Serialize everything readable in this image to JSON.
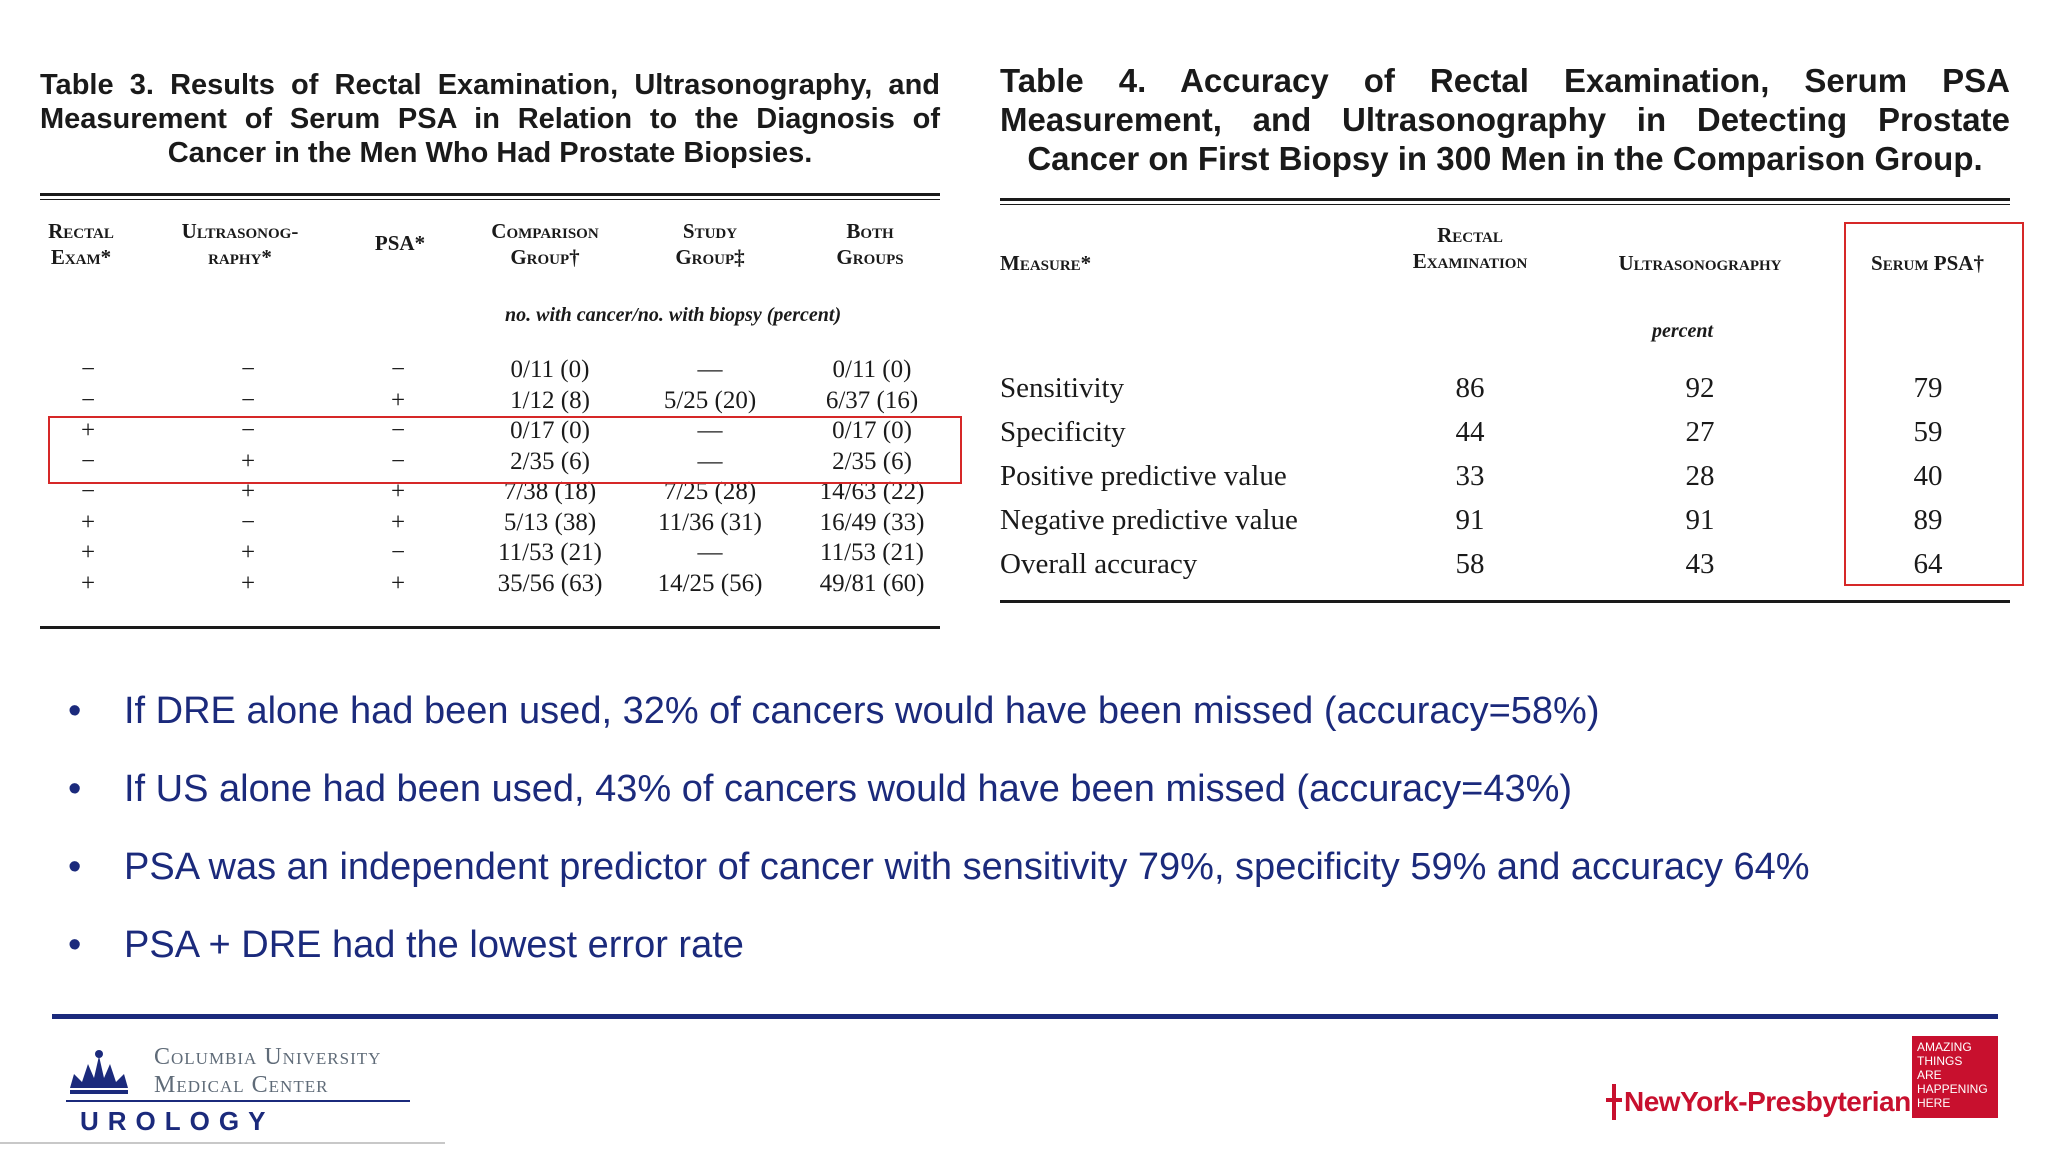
{
  "table3": {
    "caption": "Table 3. Results of Rectal Examination, Ultrasonography, and Measurement of Serum PSA in Relation to the Diagnosis of Cancer in the Men Who Had Prostate Biopsies.",
    "headers": [
      "Rectal\nExam*",
      "Ultrasonog-\nraphy*",
      "PSA*",
      "Comparison\nGroup†",
      "Study\nGroup‡",
      "Both\nGroups"
    ],
    "unit_note": "no. with cancer/no. with biopsy (percent)",
    "rows": [
      [
        "−",
        "−",
        "−",
        "0/11 (0)",
        "—",
        "0/11 (0)"
      ],
      [
        "−",
        "−",
        "+",
        "1/12 (8)",
        "5/25 (20)",
        "6/37 (16)"
      ],
      [
        "+",
        "−",
        "−",
        "0/17 (0)",
        "—",
        "0/17 (0)"
      ],
      [
        "−",
        "+",
        "−",
        "2/35 (6)",
        "—",
        "2/35 (6)"
      ],
      [
        "−",
        "+",
        "+",
        "7/38 (18)",
        "7/25 (28)",
        "14/63 (22)"
      ],
      [
        "+",
        "−",
        "+",
        "5/13 (38)",
        "11/36 (31)",
        "16/49 (33)"
      ],
      [
        "+",
        "+",
        "−",
        "11/53 (21)",
        "—",
        "11/53 (21)"
      ],
      [
        "+",
        "+",
        "+",
        "35/56 (63)",
        "14/25 (56)",
        "49/81 (60)"
      ]
    ],
    "highlight_color": "#d62828"
  },
  "table4": {
    "caption": "Table 4. Accuracy of Rectal Examination, Serum PSA Measurement, and Ultrasonography in Detecting Prostate Cancer on First Biopsy in 300 Men in the Comparison Group.",
    "headers": [
      "Measure*",
      "Rectal\nExamination",
      "Ultrasonography",
      "Serum PSA†"
    ],
    "unit_note": "percent",
    "rows": [
      [
        "Sensitivity",
        "86",
        "92",
        "79"
      ],
      [
        "Specificity",
        "44",
        "27",
        "59"
      ],
      [
        "Positive predictive value",
        "33",
        "28",
        "40"
      ],
      [
        "Negative predictive value",
        "91",
        "91",
        "89"
      ],
      [
        "Overall accuracy",
        "58",
        "43",
        "64"
      ]
    ],
    "highlight_color": "#d62828"
  },
  "bullets": [
    "If DRE alone had been used, 32% of cancers would have been missed (accuracy=58%)",
    "If US alone had been used, 43% of cancers would have been missed (accuracy=43%)",
    "PSA was an independent predictor of cancer with sensitivity 79%, specificity 59% and accuracy 64%",
    "PSA + DRE had the lowest error rate"
  ],
  "bullet_symbol": "•",
  "footer": {
    "columbia_line1": "Columbia University",
    "columbia_line2": "Medical Center",
    "department": "UROLOGY",
    "nyp_name": "NewYork-Presbyterian",
    "nyp_badge": [
      "AMAZING",
      "THINGS",
      "ARE",
      "HAPPENING",
      "HERE"
    ],
    "accent_color": "#1b2a7c",
    "brand_red": "#c8102e"
  }
}
